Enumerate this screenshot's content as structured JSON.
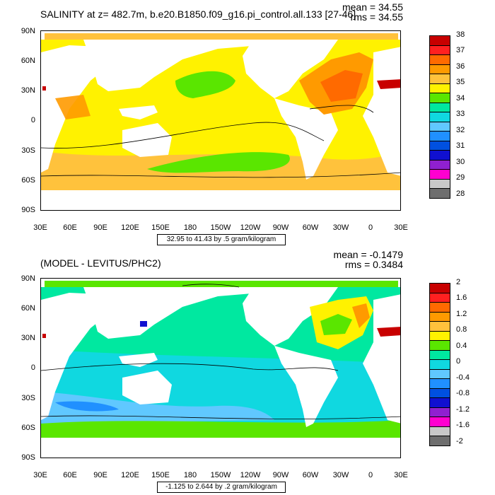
{
  "top_panel": {
    "title": "SALINITY at z= 482.7m, b.e20.B1850.f09_g16.pi_control.all.133 [27-46]",
    "mean_text": "mean = 34.55",
    "rms_text": "rms = 34.55",
    "range_text": "32.95 to 41.43 by .5 gram/kilogram",
    "colorbar": {
      "labels": [
        "38",
        "37",
        "36",
        "35",
        "34",
        "33",
        "32",
        "31",
        "30",
        "29",
        "28"
      ],
      "colors": [
        "#c80000",
        "#ff2020",
        "#ff6a00",
        "#ff9a00",
        "#ffc23c",
        "#fff200",
        "#5ae600",
        "#00e8a0",
        "#10d8e0",
        "#60c8ff",
        "#2090ff",
        "#0050e0",
        "#1010d0",
        "#9020d0",
        "#ff00d0",
        "#c8c8c8",
        "#6e6e6e"
      ]
    }
  },
  "bottom_panel": {
    "title": "(MODEL - LEVITUS/PHC2)",
    "mean_text": "mean = -0.1479",
    "rms_text": "rms = 0.3484",
    "range_text": "-1.125 to 2.644 by .2 gram/kilogram",
    "colorbar": {
      "labels": [
        "2",
        "1.6",
        "1.2",
        "0.8",
        "0.4",
        "0",
        "-0.4",
        "-0.8",
        "-1.2",
        "-1.6",
        "-2"
      ],
      "colors": [
        "#c80000",
        "#ff2020",
        "#ff6a00",
        "#ff9a00",
        "#ffc23c",
        "#fff200",
        "#5ae600",
        "#00e8a0",
        "#10d8e0",
        "#60c8ff",
        "#2090ff",
        "#0050e0",
        "#1010d0",
        "#9020d0",
        "#ff00d0",
        "#c8c8c8",
        "#6e6e6e"
      ]
    }
  },
  "lat_labels": [
    "90N",
    "60N",
    "30N",
    "0",
    "30S",
    "60S",
    "90S"
  ],
  "lon_labels": [
    "30E",
    "60E",
    "90E",
    "120E",
    "150E",
    "180",
    "150W",
    "120W",
    "90W",
    "60W",
    "30W",
    "0",
    "30E"
  ]
}
